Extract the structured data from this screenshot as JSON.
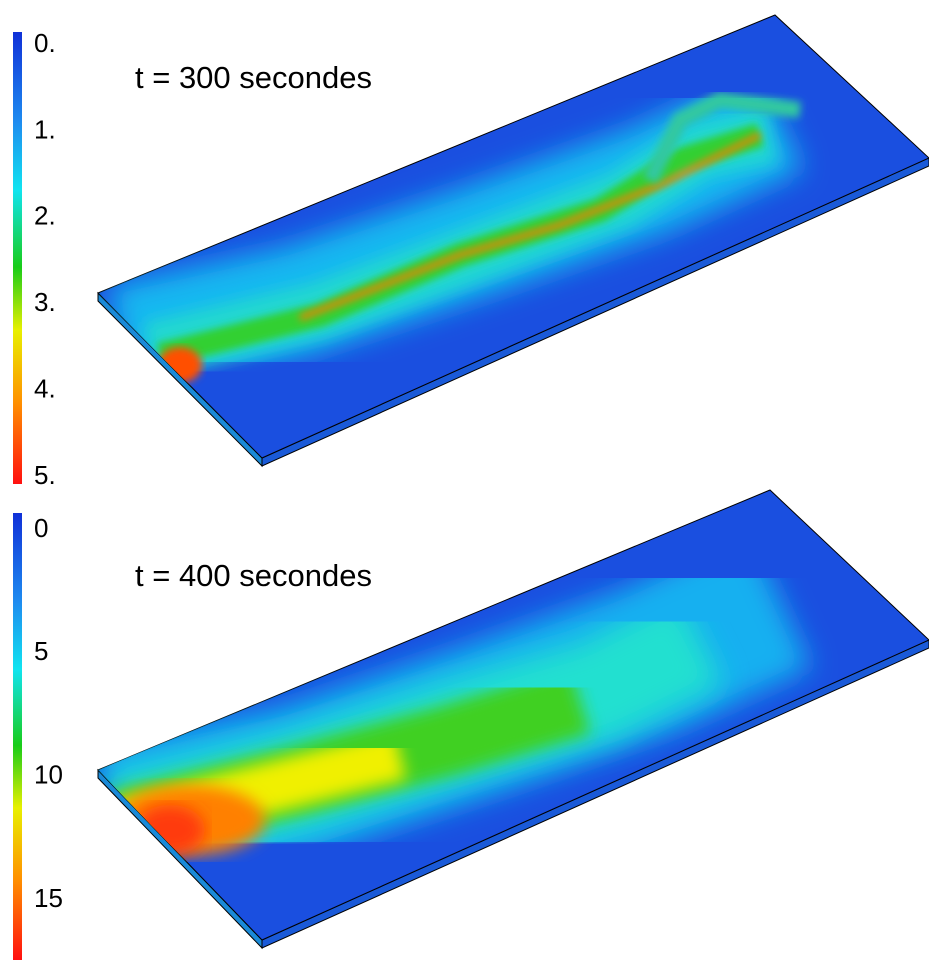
{
  "panels": [
    {
      "title": "t = 300 secondes",
      "colorbar_labels": [
        "0.",
        "1.",
        "2.",
        "3.",
        "4.",
        "5."
      ]
    },
    {
      "title": "t = 400 secondes",
      "colorbar_labels": [
        "0",
        "5",
        "10",
        "15"
      ]
    }
  ]
}
